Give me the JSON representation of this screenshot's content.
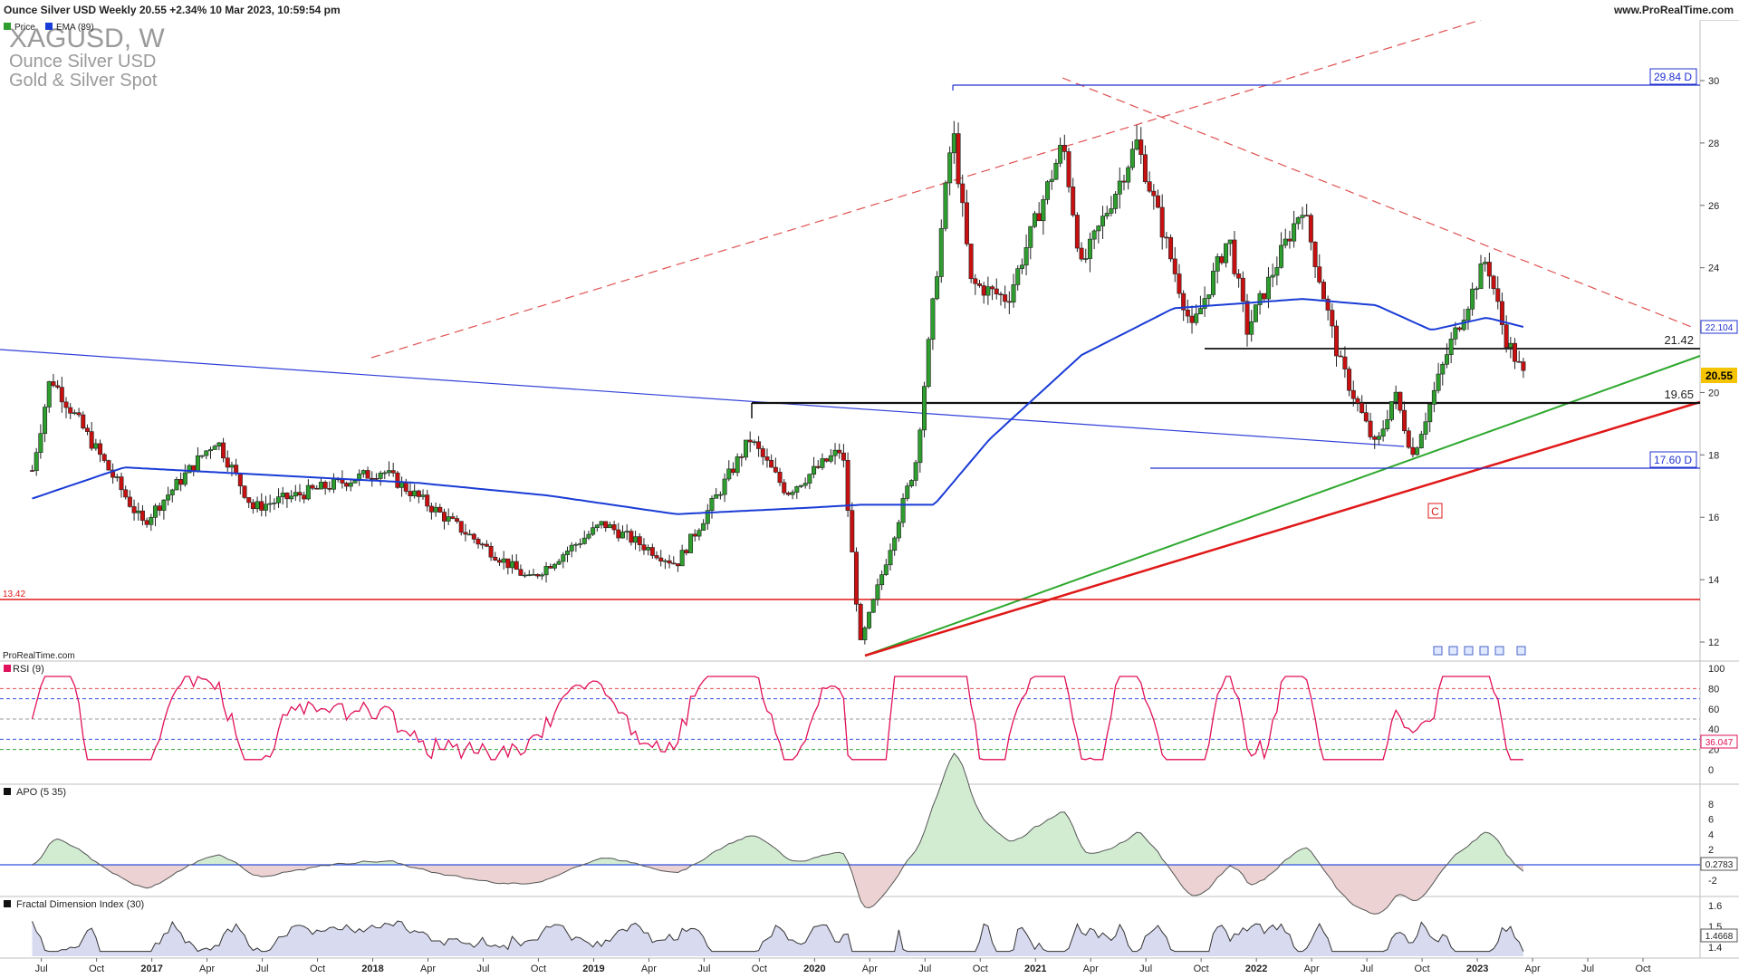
{
  "header": {
    "title": "Ounce Silver USD Weekly 20.55 +2.34% 10 Mar 2023, 10:59:54 pm",
    "website": "www.ProRealTime.com"
  },
  "instrument": {
    "symbol": "XAGUSD, W",
    "name": "Ounce Silver USD",
    "group": "Gold & Silver Spot"
  },
  "legend": {
    "price": "Price",
    "ema": "EMA (89)",
    "source": "ProRealTime.com"
  },
  "colors": {
    "up": "#2e9e2e",
    "down": "#c81010",
    "ema": "#1a3cd6",
    "rsi": "#e0105a",
    "support_green": "#2ea82e",
    "support_red": "#e01818"
  },
  "price_axis_ticks": [
    "30",
    "28",
    "26",
    "24",
    "22",
    "20",
    "18",
    "16",
    "14",
    "12"
  ],
  "price_labels": {
    "current": "20.55",
    "ema_value": "22.104",
    "level_high": "29.84 D",
    "level_low": "17.60 D",
    "level_2142": "21.42",
    "level_1965": "19.65",
    "level_1342": "13.42",
    "wave_label": "C"
  },
  "time_axis_labels": [
    "Jul",
    "Oct",
    "2017",
    "Apr",
    "Jul",
    "Oct",
    "2018",
    "Apr",
    "Jul",
    "Oct",
    "2019",
    "Apr",
    "Jul",
    "Oct",
    "2020",
    "Apr",
    "Jul",
    "Oct",
    "2021",
    "Apr",
    "Jul",
    "Oct",
    "2022",
    "Apr",
    "Jul",
    "Oct",
    "2023",
    "Apr",
    "Jul",
    "Oct"
  ],
  "panels": {
    "rsi": {
      "title": "RSI (9)",
      "ticks": [
        "100",
        "80",
        "60",
        "40",
        "20",
        "0"
      ],
      "value": "36.047",
      "levels": [
        80,
        70,
        50,
        30,
        20
      ]
    },
    "apo": {
      "title": "APO (5 35)",
      "ticks": [
        "8",
        "6",
        "4",
        "2",
        "-2"
      ],
      "value": "0.2783"
    },
    "fdi": {
      "title": "Fractal Dimension Index (30)",
      "ticks": [
        "1.6",
        "1.5",
        "1.4"
      ],
      "value": "1.4668"
    }
  },
  "chart_data": {
    "type": "candlestick",
    "timeframe": "weekly",
    "ylim": [
      11.5,
      31
    ],
    "key_points": [
      {
        "date": "2016-06",
        "price": 17.5
      },
      {
        "date": "2016-07",
        "price": 20.5
      },
      {
        "date": "2016-12",
        "price": 15.8
      },
      {
        "date": "2017-04",
        "price": 18.5
      },
      {
        "date": "2017-06",
        "price": 16.3
      },
      {
        "date": "2018-01",
        "price": 17.5
      },
      {
        "date": "2018-09",
        "price": 14.0
      },
      {
        "date": "2019-01",
        "price": 15.8
      },
      {
        "date": "2019-05",
        "price": 14.5
      },
      {
        "date": "2019-09",
        "price": 18.5
      },
      {
        "date": "2019-11",
        "price": 16.8
      },
      {
        "date": "2020-02",
        "price": 18.2
      },
      {
        "date": "2020-03",
        "price": 11.9
      },
      {
        "date": "2020-06",
        "price": 17.8
      },
      {
        "date": "2020-08",
        "price": 28.5
      },
      {
        "date": "2020-09",
        "price": 23.5
      },
      {
        "date": "2020-11",
        "price": 23.0
      },
      {
        "date": "2021-02",
        "price": 28.0
      },
      {
        "date": "2021-03",
        "price": 24.0
      },
      {
        "date": "2021-06",
        "price": 28.0
      },
      {
        "date": "2021-09",
        "price": 22.0
      },
      {
        "date": "2021-11",
        "price": 25.0
      },
      {
        "date": "2021-12",
        "price": 22.0
      },
      {
        "date": "2022-03",
        "price": 26.0
      },
      {
        "date": "2022-05",
        "price": 21.0
      },
      {
        "date": "2022-07",
        "price": 18.2
      },
      {
        "date": "2022-08",
        "price": 20.0
      },
      {
        "date": "2022-09",
        "price": 18.0
      },
      {
        "date": "2022-11",
        "price": 21.5
      },
      {
        "date": "2023-01",
        "price": 24.3
      },
      {
        "date": "2023-02",
        "price": 21.8
      },
      {
        "date": "2023-03",
        "price": 20.55
      }
    ],
    "ema89_points": [
      {
        "date": "2016-06",
        "price": 16.6
      },
      {
        "date": "2016-11",
        "price": 17.6
      },
      {
        "date": "2018-03",
        "price": 17.1
      },
      {
        "date": "2018-10",
        "price": 16.7
      },
      {
        "date": "2019-05",
        "price": 16.1
      },
      {
        "date": "2019-12",
        "price": 16.3
      },
      {
        "date": "2020-03",
        "price": 16.4
      },
      {
        "date": "2020-07",
        "price": 16.4
      },
      {
        "date": "2020-10",
        "price": 18.5
      },
      {
        "date": "2021-03",
        "price": 21.2
      },
      {
        "date": "2021-08",
        "price": 22.7
      },
      {
        "date": "2022-03",
        "price": 23.0
      },
      {
        "date": "2022-07",
        "price": 22.8
      },
      {
        "date": "2022-10",
        "price": 22.0
      },
      {
        "date": "2023-01",
        "price": 22.4
      },
      {
        "date": "2023-03",
        "price": 22.104
      }
    ],
    "horizontal_levels": [
      29.84,
      21.42,
      19.65,
      17.6,
      13.42
    ]
  }
}
